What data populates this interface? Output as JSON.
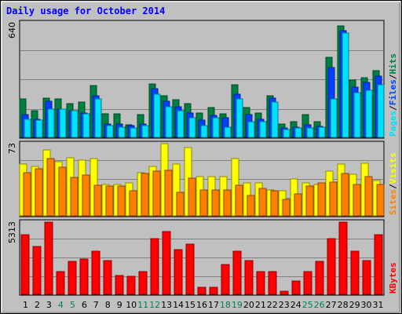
{
  "title": "Daily usage for October 2014",
  "colors": {
    "hits": "#008040",
    "files": "#0040ff",
    "pages": "#00e0ff",
    "visits": "#ffff00",
    "sites": "#ff8000",
    "kbytes": "#ff0000",
    "weekday": "#000000",
    "weekend": "#00805c",
    "separator": "#000000"
  },
  "chart_data": [
    {
      "type": "bar",
      "panel": "hits-files-pages",
      "ymax_label": "640",
      "ylim": [
        0,
        640
      ],
      "right_labels": [
        {
          "text": "Pages",
          "key": "pages"
        },
        {
          "text": "/",
          "key": "separator"
        },
        {
          "text": "Files",
          "key": "files"
        },
        {
          "text": "/",
          "key": "separator"
        },
        {
          "text": "Hits",
          "key": "hits"
        }
      ],
      "series": [
        {
          "key": "hits",
          "values": [
            216,
            151,
            221,
            216,
            187,
            197,
            289,
            130,
            130,
            70,
            127,
            300,
            232,
            209,
            187,
            135,
            168,
            130,
            294,
            165,
            135,
            232,
            76,
            86,
            127,
            86,
            446,
            624,
            319,
            334,
            372
          ]
        },
        {
          "key": "files",
          "values": [
            127,
            103,
            203,
            157,
            151,
            138,
            232,
            76,
            76,
            65,
            76,
            270,
            203,
            173,
            138,
            97,
            124,
            108,
            243,
            127,
            103,
            221,
            54,
            59,
            70,
            62,
            392,
            596,
            280,
            305,
            340
          ]
        },
        {
          "key": "pages",
          "values": [
            103,
            97,
            157,
            157,
            151,
            130,
            216,
            65,
            59,
            54,
            65,
            243,
            173,
            151,
            108,
            65,
            108,
            59,
            216,
            86,
            86,
            197,
            43,
            54,
            54,
            59,
            216,
            581,
            249,
            265,
            294
          ]
        }
      ],
      "x": [
        "1",
        "2",
        "3",
        "4",
        "5",
        "6",
        "7",
        "8",
        "9",
        "10",
        "11",
        "12",
        "13",
        "14",
        "15",
        "16",
        "17",
        "18",
        "19",
        "20",
        "21",
        "22",
        "23",
        "24",
        "25",
        "26",
        "27",
        "28",
        "29",
        "30",
        "31"
      ]
    },
    {
      "type": "bar",
      "panel": "visits-sites",
      "ymax_label": "73",
      "ylim": [
        0,
        73
      ],
      "right_labels": [
        {
          "text": "Sites",
          "key": "sites"
        },
        {
          "text": "/",
          "key": "separator"
        },
        {
          "text": "Visits",
          "key": "visits"
        }
      ],
      "series": [
        {
          "key": "visits",
          "values": [
            52,
            50,
            67,
            55,
            59,
            56,
            58,
            32,
            32,
            33,
            44,
            50,
            73,
            52,
            69,
            40,
            40,
            40,
            58,
            33,
            33,
            26,
            25,
            37,
            33,
            32,
            45,
            52,
            42,
            53,
            36
          ]
        },
        {
          "key": "sites",
          "values": [
            44,
            48,
            58,
            49,
            39,
            41,
            31,
            30,
            30,
            25,
            43,
            45,
            46,
            24,
            38,
            26,
            26,
            26,
            31,
            21,
            28,
            25,
            17,
            22,
            30,
            33,
            34,
            43,
            32,
            40,
            32
          ]
        }
      ]
    },
    {
      "type": "bar",
      "panel": "kbytes",
      "ymax_label": "5313",
      "ylim": [
        0,
        5313
      ],
      "right_labels": [
        {
          "text": "KBytes",
          "key": "kbytes"
        }
      ],
      "series": [
        {
          "key": "kbytes",
          "values": [
            4400,
            3500,
            5313,
            1700,
            2400,
            2600,
            3200,
            2500,
            1400,
            1300,
            1700,
            4100,
            4600,
            3300,
            3700,
            500,
            500,
            2200,
            3200,
            2500,
            1700,
            1700,
            250,
            1000,
            1700,
            2400,
            4100,
            5313,
            3200,
            2500,
            4400
          ]
        }
      ]
    }
  ],
  "weekend_days": [
    4,
    5,
    11,
    12,
    18,
    19,
    25,
    26
  ]
}
